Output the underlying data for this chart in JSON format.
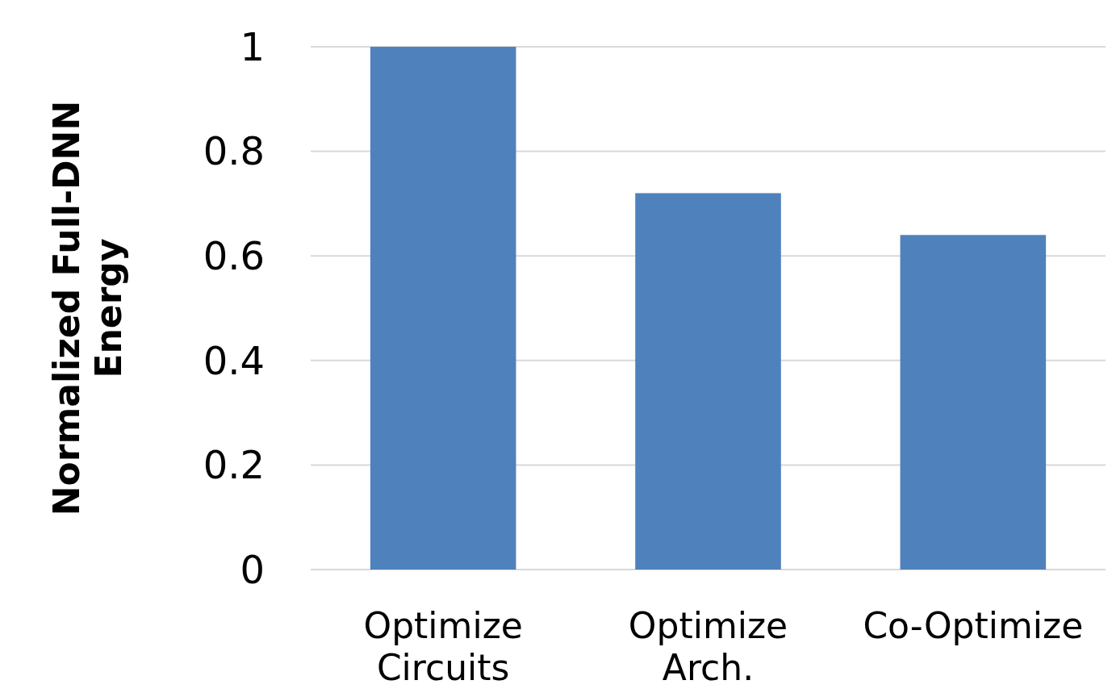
{
  "chart_data": {
    "type": "bar",
    "ylabel": "Normalized Full-DNN Energy",
    "categories": [
      "Optimize Circuits",
      "Optimize Arch.",
      "Co-Optimize"
    ],
    "values": [
      1,
      0.72,
      0.64
    ],
    "color": "#4f81bd",
    "ylim": [
      0,
      1
    ],
    "yticks": [
      0,
      0.2,
      0.4,
      0.6,
      0.8,
      1
    ],
    "grid": "y"
  }
}
